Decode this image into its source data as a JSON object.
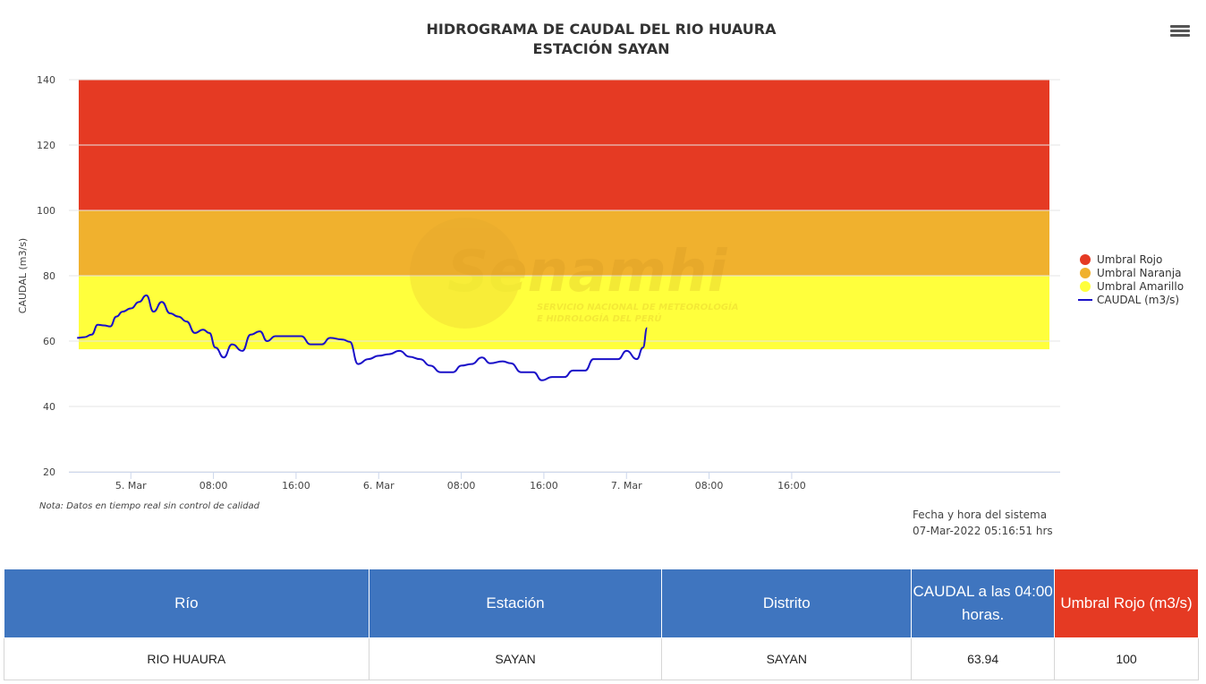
{
  "chart": {
    "title_line1": "HIDROGRAMA DE CAUDAL DEL RIO HUAURA",
    "title_line2": "ESTACIÓN SAYAN",
    "ylabel": "CAUDAL (m3/s)",
    "watermark_brand": "Senamhi",
    "watermark_line1": "SERVICIO NACIONAL DE METEOROLOGÍA",
    "watermark_line2": "E HIDROLOGÍA DEL PERÚ",
    "note": "Nota: Datos en tiempo real sin control de calidad",
    "system_date_label": "Fecha y hora del sistema",
    "system_date_value": "07-Mar-2022 05:16:51 hrs",
    "menu_icon": "hamburger-menu-icon"
  },
  "chart_data": {
    "type": "line",
    "ylim": [
      20,
      140
    ],
    "yticks": [
      20,
      40,
      60,
      80,
      100,
      120,
      140
    ],
    "x_unit": "hours since first sample",
    "xlim": [
      0,
      96
    ],
    "xticks": [
      {
        "label": "5. Mar",
        "value": 6
      },
      {
        "label": "08:00",
        "value": 14
      },
      {
        "label": "16:00",
        "value": 22
      },
      {
        "label": "6. Mar",
        "value": 30
      },
      {
        "label": "08:00",
        "value": 38
      },
      {
        "label": "16:00",
        "value": 46
      },
      {
        "label": "7. Mar",
        "value": 54
      },
      {
        "label": "08:00",
        "value": 62
      },
      {
        "label": "16:00",
        "value": 70
      }
    ],
    "bands": [
      {
        "name": "Umbral Rojo",
        "from": 100,
        "to": 140,
        "color": "#e53a23"
      },
      {
        "name": "Umbral Naranja",
        "from": 80,
        "to": 100,
        "color": "#f0b12e"
      },
      {
        "name": "Umbral Amarillo",
        "from": 57.5,
        "to": 80,
        "color": "#ffff3c"
      }
    ],
    "series": [
      {
        "name": "CAUDAL (m3/s)",
        "color": "#1a10c8",
        "points": [
          [
            0.8,
            61
          ],
          [
            1.5,
            61.2
          ],
          [
            2.2,
            62
          ],
          [
            2.8,
            65
          ],
          [
            3.4,
            64.8
          ],
          [
            4,
            64.5
          ],
          [
            4.6,
            67.5
          ],
          [
            5.2,
            69
          ],
          [
            6,
            70
          ],
          [
            6.8,
            72
          ],
          [
            7.5,
            74
          ],
          [
            8.2,
            69
          ],
          [
            9,
            72
          ],
          [
            9.8,
            68.5
          ],
          [
            10.6,
            67.5
          ],
          [
            11.4,
            66
          ],
          [
            12.2,
            62.5
          ],
          [
            13,
            63.5
          ],
          [
            13.6,
            62.5
          ],
          [
            14.2,
            58
          ],
          [
            15,
            55
          ],
          [
            15.8,
            59
          ],
          [
            16.8,
            57
          ],
          [
            17.6,
            62
          ],
          [
            18.5,
            63
          ],
          [
            19.2,
            60
          ],
          [
            20,
            61.5
          ],
          [
            21.5,
            61.5
          ],
          [
            22.5,
            61.5
          ],
          [
            23.4,
            59
          ],
          [
            24.5,
            59
          ],
          [
            25.3,
            61
          ],
          [
            26.5,
            60.5
          ],
          [
            27.2,
            59.8
          ],
          [
            28,
            53
          ],
          [
            29,
            54.5
          ],
          [
            30,
            55.5
          ],
          [
            31,
            56
          ],
          [
            32,
            57
          ],
          [
            33,
            55.2
          ],
          [
            34,
            54.5
          ],
          [
            35,
            52.5
          ],
          [
            36,
            50.5
          ],
          [
            37.2,
            50.5
          ],
          [
            38,
            52.5
          ],
          [
            39,
            53
          ],
          [
            40,
            55
          ],
          [
            40.8,
            53.2
          ],
          [
            42,
            53.8
          ],
          [
            42.8,
            53.2
          ],
          [
            43.8,
            50.5
          ],
          [
            45,
            50.5
          ],
          [
            45.8,
            48
          ],
          [
            46.8,
            49
          ],
          [
            48,
            49
          ],
          [
            48.8,
            51
          ],
          [
            50,
            51
          ],
          [
            50.8,
            54.5
          ],
          [
            52,
            54.5
          ],
          [
            53.2,
            54.5
          ],
          [
            54,
            57
          ],
          [
            55,
            54.5
          ],
          [
            55.6,
            58
          ],
          [
            56,
            64
          ]
        ]
      }
    ],
    "legend": {
      "position": "right",
      "items": [
        {
          "label": "Umbral Rojo",
          "color": "#e53a23",
          "marker": "circle"
        },
        {
          "label": "Umbral Naranja",
          "color": "#f0b12e",
          "marker": "circle"
        },
        {
          "label": "Umbral Amarillo",
          "color": "#ffff3c",
          "marker": "circle"
        },
        {
          "label": "CAUDAL (m3/s)",
          "color": "#1a10c8",
          "marker": "line"
        }
      ]
    }
  },
  "table": {
    "headers": [
      "Río",
      "Estación",
      "Distrito",
      "CAUDAL a las 04:00 horas.",
      "Umbral Rojo (m3/s)"
    ],
    "header_colors": [
      "#3f75bf",
      "#3f75bf",
      "#3f75bf",
      "#3f75bf",
      "#e53a23"
    ],
    "rows": [
      [
        "RIO HUAURA",
        "SAYAN",
        "SAYAN",
        "63.94",
        "100"
      ]
    ]
  }
}
